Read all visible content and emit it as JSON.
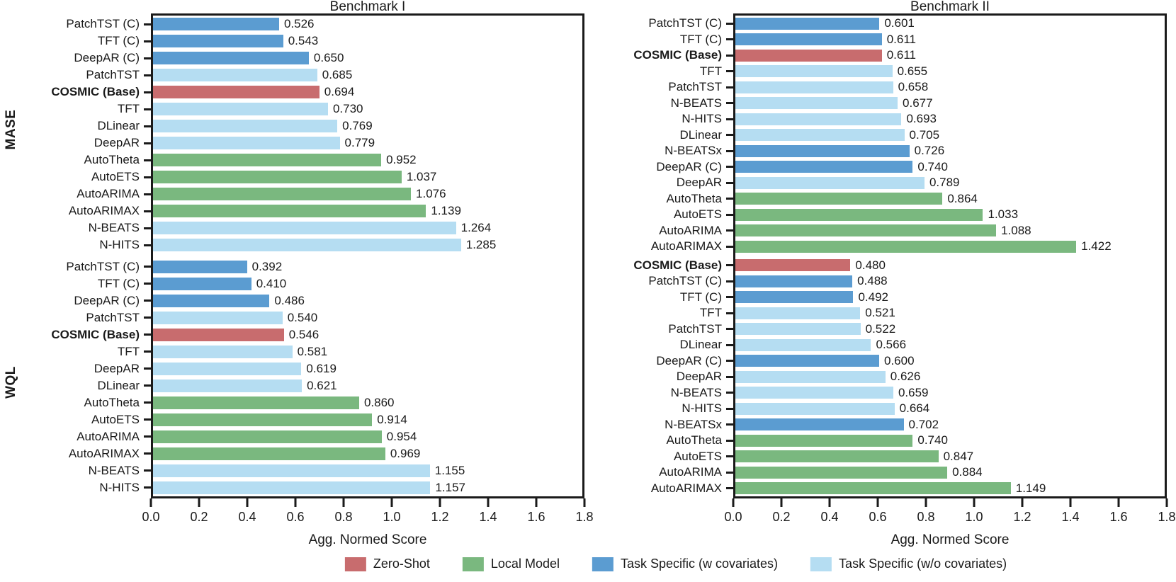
{
  "figure": {
    "titles": [
      "Benchmark I",
      "Benchmark II"
    ],
    "xlabel": "Agg. Normed Score",
    "row_labels": [
      "MASE",
      "WQL"
    ],
    "x_ticks": [
      "0.0",
      "0.2",
      "0.4",
      "0.6",
      "0.8",
      "1.0",
      "1.2",
      "1.4",
      "1.6",
      "1.8"
    ],
    "xlim": [
      0,
      1.8
    ]
  },
  "colors": {
    "zero_shot": "#C86C6E",
    "local": "#7AB87F",
    "task_cov": "#5B9CD1",
    "task_nocov": "#B5DDF2"
  },
  "legend": [
    {
      "label": "Zero-Shot",
      "color_key": "zero_shot"
    },
    {
      "label": "Local Model",
      "color_key": "local"
    },
    {
      "label": "Task Specific (w covariates)",
      "color_key": "task_cov"
    },
    {
      "label": "Task Specific (w/o covariates)",
      "color_key": "task_nocov"
    }
  ],
  "chart_data": [
    {
      "type": "bar",
      "orientation": "horizontal",
      "benchmark": "Benchmark I",
      "metric": "MASE",
      "xlabel": "Agg. Normed Score",
      "xlim": [
        0,
        1.8
      ],
      "grid": false,
      "bars": [
        {
          "label": "PatchTST (C)",
          "value": 0.526,
          "category": "task_cov"
        },
        {
          "label": "TFT (C)",
          "value": 0.543,
          "category": "task_cov"
        },
        {
          "label": "DeepAR (C)",
          "value": 0.65,
          "category": "task_cov"
        },
        {
          "label": "PatchTST",
          "value": 0.685,
          "category": "task_nocov"
        },
        {
          "label": "COSMIC (Base)",
          "value": 0.694,
          "category": "zero_shot",
          "bold": true
        },
        {
          "label": "TFT",
          "value": 0.73,
          "category": "task_nocov"
        },
        {
          "label": "DLinear",
          "value": 0.769,
          "category": "task_nocov"
        },
        {
          "label": "DeepAR",
          "value": 0.779,
          "category": "task_nocov"
        },
        {
          "label": "AutoTheta",
          "value": 0.952,
          "category": "local"
        },
        {
          "label": "AutoETS",
          "value": 1.037,
          "category": "local"
        },
        {
          "label": "AutoARIMA",
          "value": 1.076,
          "category": "local"
        },
        {
          "label": "AutoARIMAX",
          "value": 1.139,
          "category": "local"
        },
        {
          "label": "N-BEATS",
          "value": 1.264,
          "category": "task_nocov"
        },
        {
          "label": "N-HITS",
          "value": 1.285,
          "category": "task_nocov"
        }
      ]
    },
    {
      "type": "bar",
      "orientation": "horizontal",
      "benchmark": "Benchmark I",
      "metric": "WQL",
      "xlabel": "Agg. Normed Score",
      "xlim": [
        0,
        1.8
      ],
      "grid": false,
      "bars": [
        {
          "label": "PatchTST (C)",
          "value": 0.392,
          "category": "task_cov"
        },
        {
          "label": "TFT (C)",
          "value": 0.41,
          "category": "task_cov"
        },
        {
          "label": "DeepAR (C)",
          "value": 0.486,
          "category": "task_cov"
        },
        {
          "label": "PatchTST",
          "value": 0.54,
          "category": "task_nocov"
        },
        {
          "label": "COSMIC (Base)",
          "value": 0.546,
          "category": "zero_shot",
          "bold": true
        },
        {
          "label": "TFT",
          "value": 0.581,
          "category": "task_nocov"
        },
        {
          "label": "DeepAR",
          "value": 0.619,
          "category": "task_nocov"
        },
        {
          "label": "DLinear",
          "value": 0.621,
          "category": "task_nocov"
        },
        {
          "label": "AutoTheta",
          "value": 0.86,
          "category": "local"
        },
        {
          "label": "AutoETS",
          "value": 0.914,
          "category": "local"
        },
        {
          "label": "AutoARIMA",
          "value": 0.954,
          "category": "local"
        },
        {
          "label": "AutoARIMAX",
          "value": 0.969,
          "category": "local"
        },
        {
          "label": "N-BEATS",
          "value": 1.155,
          "category": "task_nocov"
        },
        {
          "label": "N-HITS",
          "value": 1.157,
          "category": "task_nocov"
        }
      ]
    },
    {
      "type": "bar",
      "orientation": "horizontal",
      "benchmark": "Benchmark II",
      "metric": "MASE",
      "xlabel": "Agg. Normed Score",
      "xlim": [
        0,
        1.8
      ],
      "grid": false,
      "bars": [
        {
          "label": "PatchTST (C)",
          "value": 0.601,
          "category": "task_cov"
        },
        {
          "label": "TFT (C)",
          "value": 0.611,
          "category": "task_cov"
        },
        {
          "label": "COSMIC (Base)",
          "value": 0.611,
          "category": "zero_shot",
          "bold": true
        },
        {
          "label": "TFT",
          "value": 0.655,
          "category": "task_nocov"
        },
        {
          "label": "PatchTST",
          "value": 0.658,
          "category": "task_nocov"
        },
        {
          "label": "N-BEATS",
          "value": 0.677,
          "category": "task_nocov"
        },
        {
          "label": "N-HITS",
          "value": 0.693,
          "category": "task_nocov"
        },
        {
          "label": "DLinear",
          "value": 0.705,
          "category": "task_nocov"
        },
        {
          "label": "N-BEATSx",
          "value": 0.726,
          "category": "task_cov"
        },
        {
          "label": "DeepAR (C)",
          "value": 0.74,
          "category": "task_cov"
        },
        {
          "label": "DeepAR",
          "value": 0.789,
          "category": "task_nocov"
        },
        {
          "label": "AutoTheta",
          "value": 0.864,
          "category": "local"
        },
        {
          "label": "AutoETS",
          "value": 1.033,
          "category": "local"
        },
        {
          "label": "AutoARIMA",
          "value": 1.088,
          "category": "local"
        },
        {
          "label": "AutoARIMAX",
          "value": 1.422,
          "category": "local"
        }
      ]
    },
    {
      "type": "bar",
      "orientation": "horizontal",
      "benchmark": "Benchmark II",
      "metric": "WQL",
      "xlabel": "Agg. Normed Score",
      "xlim": [
        0,
        1.8
      ],
      "grid": false,
      "bars": [
        {
          "label": "COSMIC (Base)",
          "value": 0.48,
          "category": "zero_shot",
          "bold": true
        },
        {
          "label": "PatchTST (C)",
          "value": 0.488,
          "category": "task_cov"
        },
        {
          "label": "TFT (C)",
          "value": 0.492,
          "category": "task_cov"
        },
        {
          "label": "TFT",
          "value": 0.521,
          "category": "task_nocov"
        },
        {
          "label": "PatchTST",
          "value": 0.522,
          "category": "task_nocov"
        },
        {
          "label": "DLinear",
          "value": 0.566,
          "category": "task_nocov"
        },
        {
          "label": "DeepAR (C)",
          "value": 0.6,
          "category": "task_cov"
        },
        {
          "label": "DeepAR",
          "value": 0.626,
          "category": "task_nocov"
        },
        {
          "label": "N-BEATS",
          "value": 0.659,
          "category": "task_nocov"
        },
        {
          "label": "N-HITS",
          "value": 0.664,
          "category": "task_nocov"
        },
        {
          "label": "N-BEATSx",
          "value": 0.702,
          "category": "task_cov"
        },
        {
          "label": "AutoTheta",
          "value": 0.74,
          "category": "local"
        },
        {
          "label": "AutoETS",
          "value": 0.847,
          "category": "local"
        },
        {
          "label": "AutoARIMA",
          "value": 0.884,
          "category": "local"
        },
        {
          "label": "AutoARIMAX",
          "value": 1.149,
          "category": "local"
        }
      ]
    }
  ]
}
